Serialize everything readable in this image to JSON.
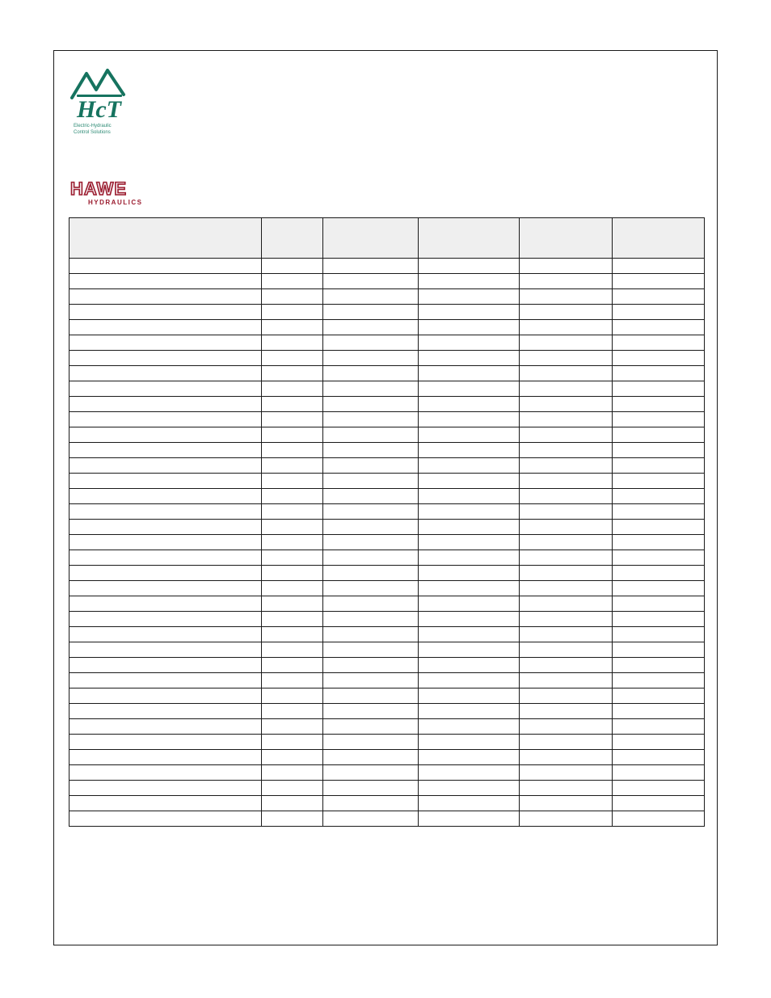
{
  "logos": {
    "hct_label_line1": "Electric-Hydraulic",
    "hct_label_line2": "Control Solutions",
    "hawe_label": "HYDRAULICS"
  },
  "table": {
    "columns": [
      "",
      "",
      "",
      "",
      "",
      ""
    ],
    "row_count": 37,
    "header_bg": "#efefef",
    "border_color": "#1a1a1a"
  }
}
